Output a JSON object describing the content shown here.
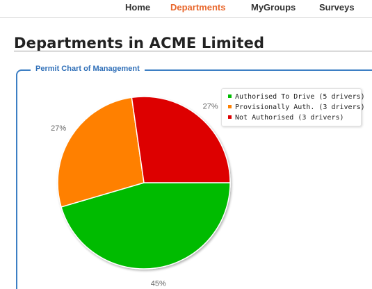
{
  "nav": {
    "items": [
      {
        "label": "Home",
        "active": false
      },
      {
        "label": "Departments",
        "active": true
      },
      {
        "label": "MyGroups",
        "active": false
      },
      {
        "label": "Surveys",
        "active": false
      }
    ],
    "active_color": "#e8662b"
  },
  "page": {
    "title": "Departments in ACME Limited"
  },
  "panel": {
    "legend_title": "Permit Chart of Management"
  },
  "chart_data": {
    "type": "pie",
    "title": "",
    "series": [
      {
        "name": "Authorised To Drive (5 drivers)",
        "value": 5,
        "percent_label": "45%",
        "color": "#00bb00"
      },
      {
        "name": "Provisionally Auth. (3 drivers)",
        "value": 3,
        "percent_label": "27%",
        "color": "#ff8000"
      },
      {
        "name": "Not Authorised (3 drivers)",
        "value": 3,
        "percent_label": "27%",
        "color": "#dd0000"
      }
    ],
    "legend_placement": "top-right"
  }
}
